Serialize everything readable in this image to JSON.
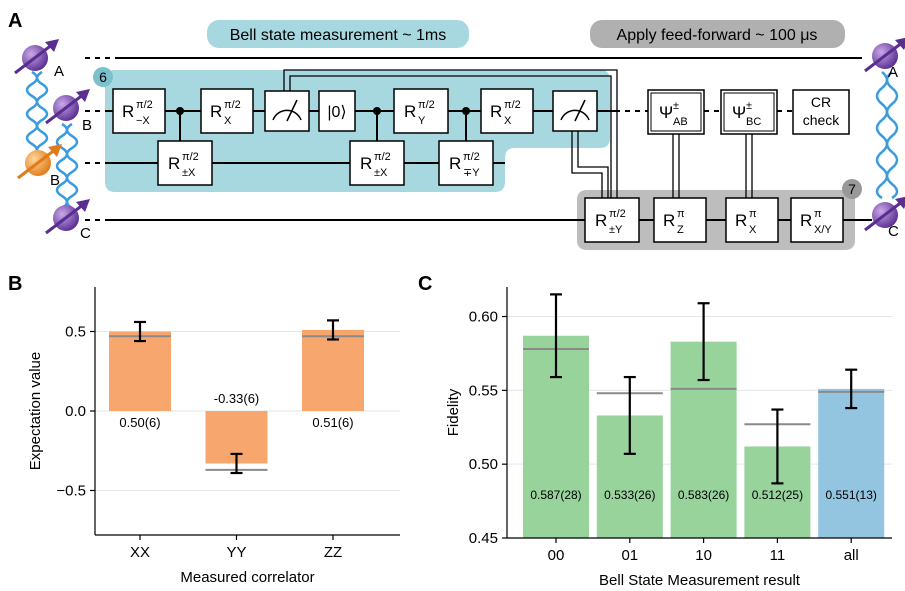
{
  "diagram": {
    "panel_label": "A",
    "bsm_label": "Bell state measurement ~ 1ms",
    "ff_label": "Apply feed-forward ~ 100 μs",
    "box_numbers": [
      "6",
      "7"
    ],
    "qubits_left": [
      "A",
      "B",
      "B",
      "C"
    ],
    "qubits_right": [
      "A",
      "C"
    ],
    "gates": [
      {
        "base": "R",
        "sup": "π/2",
        "sub": "−X"
      },
      {
        "base": "R",
        "sup": "π/2",
        "sub": "±X"
      },
      {
        "base": "R",
        "sup": "π/2",
        "sub": "X"
      },
      {
        "base": "R",
        "sup": "π/2",
        "sub": "±X"
      },
      {
        "base": "R",
        "sup": "π/2",
        "sub": "Y"
      },
      {
        "base": "R",
        "sup": "π/2",
        "sub": "∓Y"
      },
      {
        "base": "R",
        "sup": "π/2",
        "sub": "X"
      },
      {
        "base": "R",
        "sup": "π/2",
        "sub": "±Y"
      },
      {
        "base": "R",
        "sup": "π",
        "sub": "Z"
      },
      {
        "base": "R",
        "sup": "π",
        "sub": "X"
      },
      {
        "base": "R",
        "sup": "π",
        "sub": "X/Y"
      }
    ],
    "ket": "|0⟩",
    "bell": [
      {
        "base": "Ψ",
        "sup": "±",
        "sub": "AB"
      },
      {
        "base": "Ψ",
        "sup": "±",
        "sub": "BC"
      }
    ],
    "cr_check": [
      "CR",
      "check"
    ]
  },
  "chart_data": [
    {
      "panel_label": "B",
      "type": "bar",
      "ylabel": "Expectation value",
      "xlabel": "Measured correlator",
      "categories": [
        "XX",
        "YY",
        "ZZ"
      ],
      "values": [
        0.5,
        -0.33,
        0.51
      ],
      "errors": [
        0.06,
        0.06,
        0.06
      ],
      "value_labels": [
        "0.50(6)",
        "-0.33(6)",
        "0.51(6)"
      ],
      "theory": [
        0.47,
        -0.37,
        0.47
      ],
      "color": "#f7a76e",
      "theory_color": "#8a8a8a",
      "ylim": [
        -0.78,
        0.78
      ],
      "yticks": [
        {
          "value": -0.5,
          "label": "−0.5"
        },
        {
          "value": 0,
          "label": "0.0"
        },
        0.5
      ],
      "grid": true
    },
    {
      "panel_label": "C",
      "type": "bar",
      "ylabel": "Fidelity",
      "xlabel": "Bell State Measurement result",
      "categories": [
        "00",
        "01",
        "10",
        "11",
        "all"
      ],
      "values": [
        0.587,
        0.533,
        0.583,
        0.512,
        0.551
      ],
      "errors": [
        0.028,
        0.026,
        0.026,
        0.025,
        0.013
      ],
      "value_labels": [
        "0.587(28)",
        "0.533(26)",
        "0.583(26)",
        "0.512(25)",
        "0.551(13)"
      ],
      "theory": [
        0.578,
        0.548,
        0.551,
        0.527,
        0.549
      ],
      "colors": [
        "#97d39b",
        "#97d39b",
        "#97d39b",
        "#97d39b",
        "#93c4e0"
      ],
      "theory_color": "#8a8a8a",
      "ylim": [
        0.45,
        0.62
      ],
      "yticks": [
        0.45,
        {
          "value": 0.5,
          "label": "0.50"
        },
        0.55,
        {
          "value": 0.6,
          "label": "0.60"
        }
      ],
      "grid": true
    }
  ]
}
